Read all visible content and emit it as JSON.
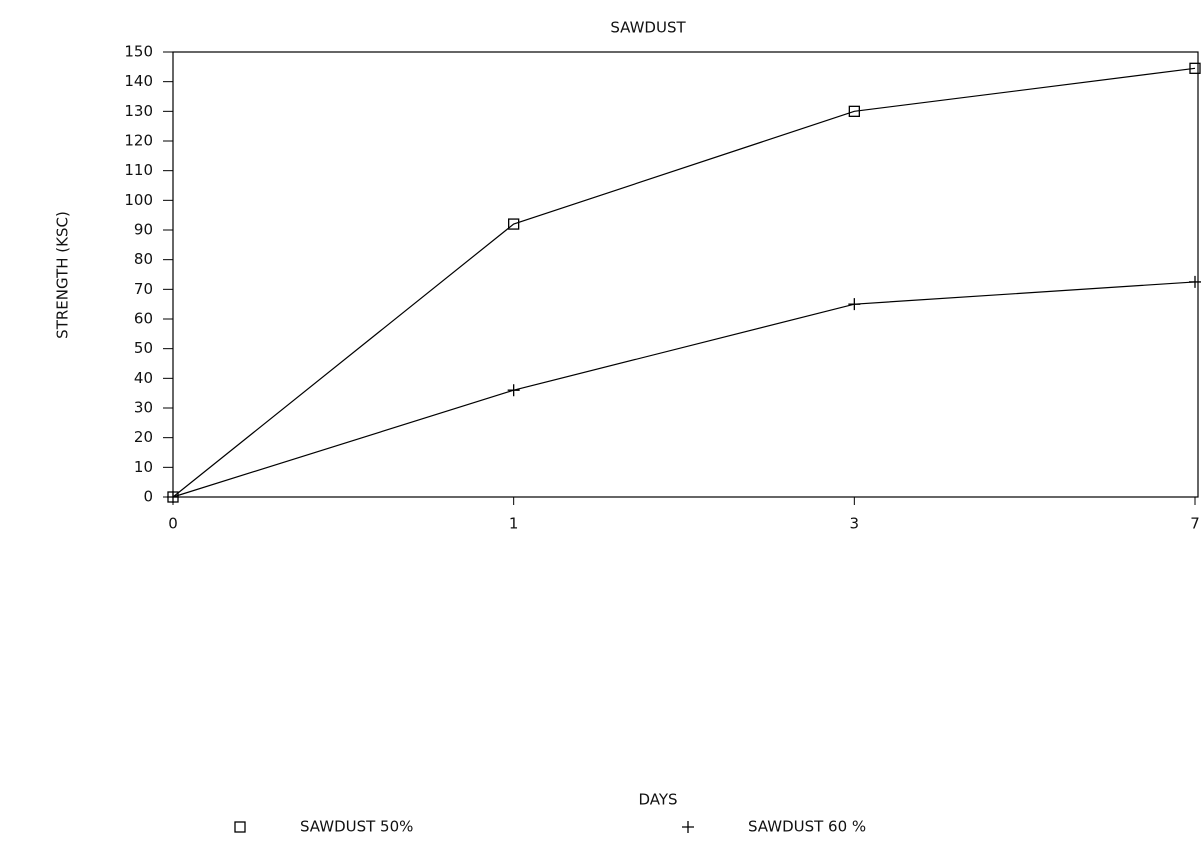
{
  "chart_data": {
    "type": "line",
    "title": "SAWDUST",
    "x_label": "DAYS",
    "y_label": "STRENGTH (KSC)",
    "categories": [
      "0",
      "1",
      "3",
      "7"
    ],
    "series": [
      {
        "name": "SAWDUST 50%",
        "color": "#000000",
        "marker": "square",
        "values": [
          0,
          92,
          130,
          144.5
        ]
      },
      {
        "name": "SAWDUST 60 %",
        "color": "#000000",
        "marker": "plus",
        "values": [
          0,
          36,
          65,
          72.5
        ]
      }
    ],
    "ylim": [
      0,
      150
    ],
    "yticks": [
      0,
      10,
      20,
      30,
      40,
      50,
      60,
      70,
      80,
      90,
      100,
      110,
      120,
      130,
      140,
      150
    ],
    "grid": false,
    "legend": "bottom"
  }
}
